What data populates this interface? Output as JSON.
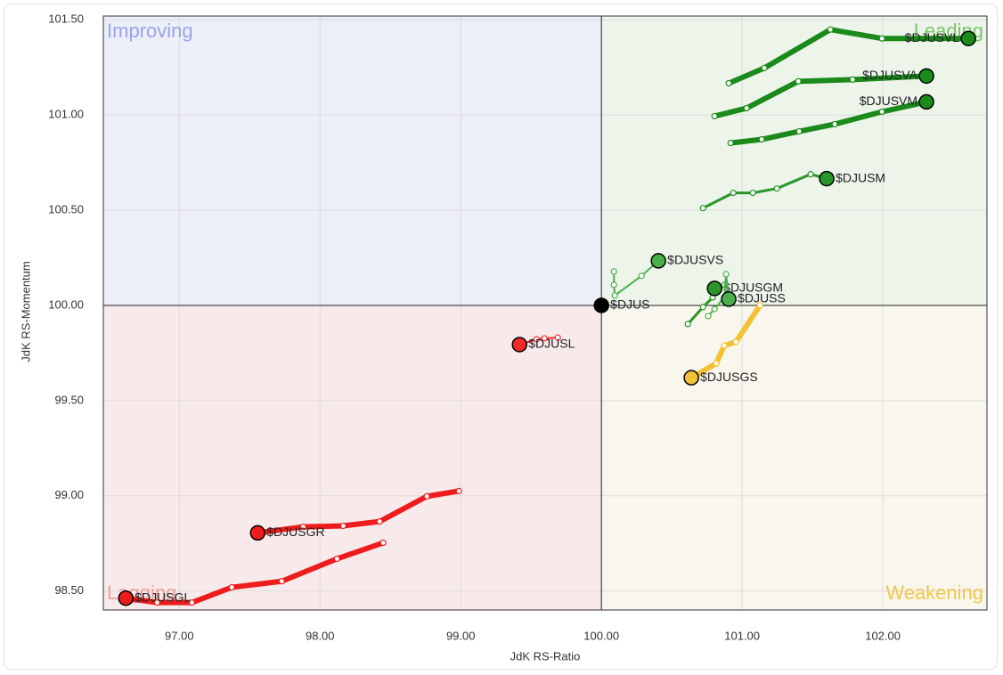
{
  "chart_data": {
    "type": "rrg",
    "x_label": "JdK RS-Ratio",
    "y_label": "JdK RS-Momentum",
    "xlim": [
      96.46,
      102.74
    ],
    "ylim": [
      98.4,
      101.52
    ],
    "xticks": [
      {
        "value": 97,
        "label": "97.00"
      },
      {
        "value": 98,
        "label": "98.00"
      },
      {
        "value": 99,
        "label": "99.00"
      },
      {
        "value": 100,
        "label": "100.00"
      },
      {
        "value": 101,
        "label": "101.00"
      },
      {
        "value": 102,
        "label": "102.00"
      }
    ],
    "yticks": [
      {
        "value": 98.5,
        "label": "98.50"
      },
      {
        "value": 99,
        "label": "99.00"
      },
      {
        "value": 99.5,
        "label": "99.50"
      },
      {
        "value": 100,
        "label": "100.00"
      },
      {
        "value": 100.5,
        "label": "100.50"
      },
      {
        "value": 101,
        "label": "101.00"
      },
      {
        "value": 101.5,
        "label": "101.50"
      }
    ],
    "grid": true,
    "quadrants": [
      {
        "name": "Improving",
        "corner": "top-left",
        "color": "#eceef8",
        "label_color": "#9aa4e8"
      },
      {
        "name": "Leading",
        "corner": "top-right",
        "color": "#edf4ea",
        "label_color": "#7cc46e"
      },
      {
        "name": "Weakening",
        "corner": "bottom-right",
        "color": "#f9f6ee",
        "label_color": "#f2c84b"
      },
      {
        "name": "Lagging",
        "corner": "bottom-left",
        "color": "#f8eaea",
        "label_color": "#f0a0a0"
      }
    ],
    "series": [
      {
        "name": "$DJUS",
        "color": "#000000",
        "x": [
          100
        ],
        "values": [
          100
        ]
      },
      {
        "name": "$DJUSVL",
        "color": "#1a8a1a",
        "x": [
          100.905,
          101.158,
          101.627,
          101.994,
          102.608
        ],
        "values": [
          101.167,
          101.247,
          101.449,
          101.402,
          101.402
        ]
      },
      {
        "name": "$DJUSVA",
        "color": "#1a8a1a",
        "x": [
          100.804,
          101.032,
          101.399,
          101.785,
          102.31
        ],
        "values": [
          100.994,
          101.036,
          101.177,
          101.186,
          101.205
        ]
      },
      {
        "name": "$DJUSVM",
        "color": "#1a8a1a",
        "x": [
          100.918,
          101.139,
          101.405,
          101.658,
          101.994,
          102.31
        ],
        "values": [
          100.853,
          100.872,
          100.914,
          100.952,
          101.017,
          101.069
        ]
      },
      {
        "name": "$DJUSM",
        "color": "#2a962a",
        "x": [
          100.722,
          100.937,
          101.076,
          101.247,
          101.487,
          101.601
        ],
        "values": [
          100.511,
          100.591,
          100.591,
          100.614,
          100.689,
          100.666
        ]
      },
      {
        "name": "$DJUSVS",
        "color": "#4bb04b",
        "x": [
          100.089,
          100.089,
          100.095,
          100.285,
          100.405
        ],
        "values": [
          100.178,
          100.108,
          100.052,
          100.155,
          100.234
        ]
      },
      {
        "name": "$DJUSGM",
        "color": "#2a962a",
        "x": [
          100.614,
          100.722,
          100.791,
          100.873,
          100.804
        ],
        "values": [
          99.902,
          99.991,
          100.042,
          100.108,
          100.089
        ]
      },
      {
        "name": "$DJUSS",
        "color": "#4bb04b",
        "x": [
          100.759,
          100.804,
          100.873,
          100.886,
          100.905
        ],
        "values": [
          99.944,
          99.981,
          100.042,
          100.164,
          100.033
        ]
      },
      {
        "name": "$DJUSGS",
        "color": "#f2c232",
        "x": [
          101.127,
          100.956,
          100.873,
          100.816,
          100.639
        ],
        "values": [
          100.0,
          99.808,
          99.789,
          99.695,
          99.62
        ]
      },
      {
        "name": "$DJUSL",
        "color": "#ee2a2a",
        "x": [
          99.69,
          99.595,
          99.538,
          99.418
        ],
        "values": [
          99.831,
          99.827,
          99.822,
          99.794
        ]
      },
      {
        "name": "$DJUSGR",
        "color": "#ee1c1c",
        "x": [
          98.987,
          98.759,
          98.424,
          98.165,
          97.88,
          97.557
        ],
        "values": [
          99.025,
          98.997,
          98.865,
          98.842,
          98.837,
          98.805
        ]
      },
      {
        "name": "$DJUSGL",
        "color": "#ee1c1c",
        "x": [
          98.449,
          98.12,
          97.728,
          97.373,
          97.089,
          96.842,
          96.62
        ],
        "values": [
          98.753,
          98.669,
          98.551,
          98.519,
          98.439,
          98.439,
          98.462
        ]
      }
    ]
  }
}
